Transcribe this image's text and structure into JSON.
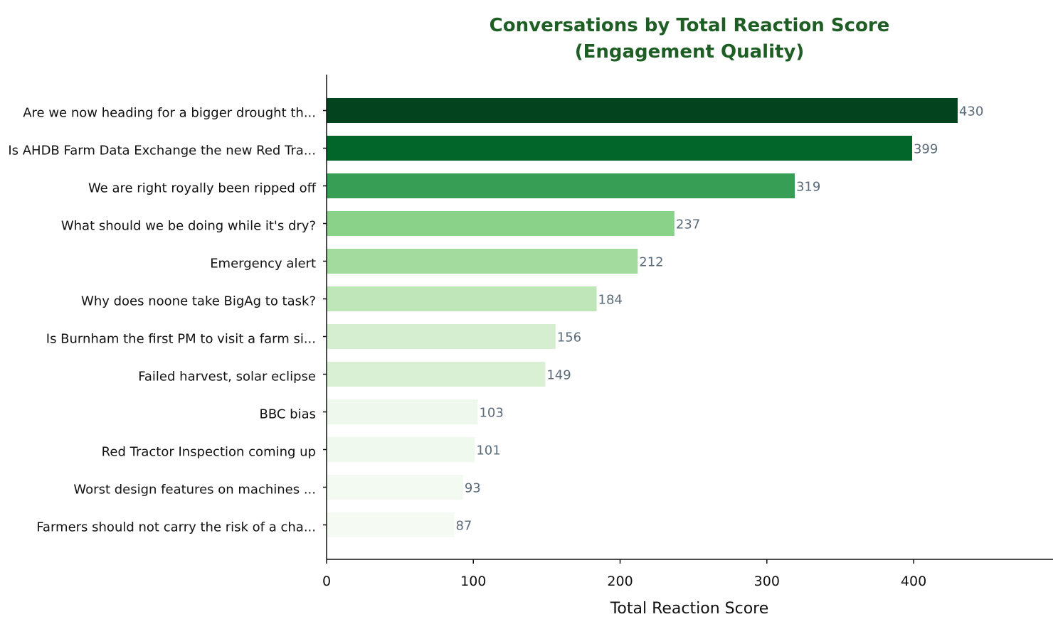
{
  "chart_data": {
    "type": "bar",
    "orientation": "horizontal",
    "title_line1": "Conversations by Total Reaction Score",
    "title_line2": "(Engagement Quality)",
    "xlabel": "Total Reaction Score",
    "ylabel": "",
    "xlim": [
      0,
      495
    ],
    "xticks": [
      0,
      100,
      200,
      300,
      400
    ],
    "grid": false,
    "legend": "none",
    "categories": [
      "Are we now heading for a bigger drought th...",
      "Is AHDB Farm Data Exchange the new Red Tra...",
      "We are right royally been ripped off",
      "What should we be doing while it's dry?",
      "Emergency alert",
      "Why does noone take BigAg to task?",
      "Is Burnham the first PM to visit a farm si...",
      "Failed harvest, solar eclipse",
      "BBC bias",
      "Red Tractor Inspection coming up",
      "Worst design features on machines ...",
      "Farmers should not carry the risk of a cha..."
    ],
    "values": [
      430,
      399,
      319,
      237,
      212,
      184,
      156,
      149,
      103,
      101,
      93,
      87
    ],
    "colors": [
      "#03431d",
      "#02662b",
      "#369e55",
      "#8ad189",
      "#a3da9e",
      "#bfe6b8",
      "#d4eecf",
      "#d9f0d4",
      "#eef8ec",
      "#f0f9ee",
      "#f3faf1",
      "#f5fbf3"
    ],
    "label_color": "#5b6b7a",
    "title_color": "#1e5e24"
  }
}
